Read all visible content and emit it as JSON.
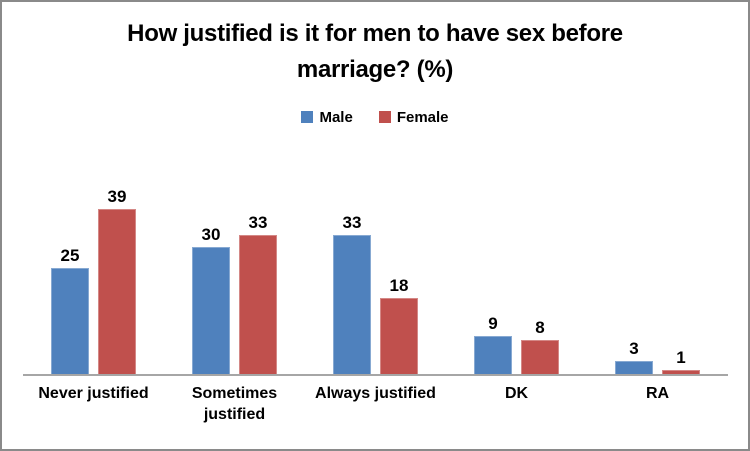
{
  "chart_data": {
    "type": "bar",
    "title": "How justified is it for men to have sex before marriage? (%)",
    "title_lines": [
      "How justified is it for men to have sex before",
      "marriage? (%)"
    ],
    "categories": [
      "Never justified",
      "Sometimes\njustified",
      "Always justified",
      "DK",
      "RA"
    ],
    "series": [
      {
        "name": "Male",
        "color": "#4F81BD",
        "values": [
          25,
          30,
          33,
          9,
          3
        ]
      },
      {
        "name": "Female",
        "color": "#C0504D",
        "values": [
          39,
          33,
          18,
          8,
          1
        ]
      }
    ],
    "ylim": [
      0,
      45
    ],
    "value_labels_shown": true,
    "legend_position": "top",
    "grid": false,
    "xlabel": "",
    "ylabel": "",
    "axis_line_color": "#A6A6A6",
    "frame_border_color": "#8A8A8A",
    "text_color": "#000000"
  }
}
